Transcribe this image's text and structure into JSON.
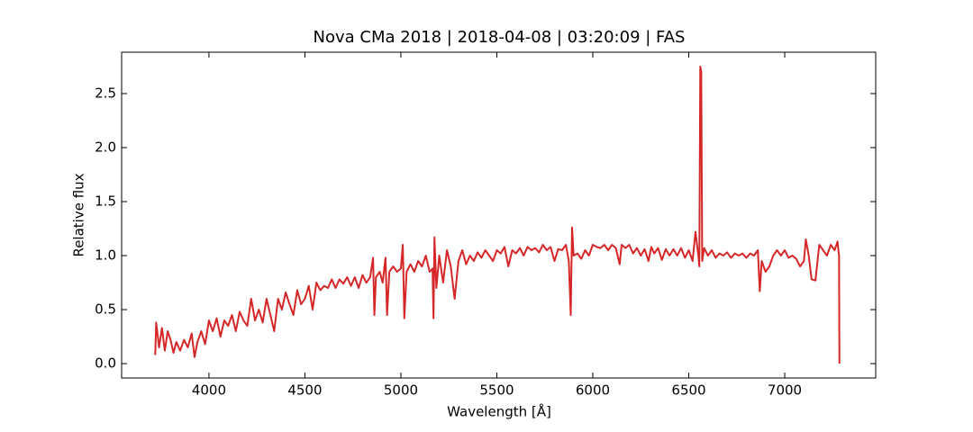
{
  "chart_data": {
    "type": "line",
    "title": "Nova CMa 2018 | 2018-04-08 | 03:20:09 | FAS",
    "x_label": "Wavelength [Å]",
    "y_label": "Relative flux",
    "color": "#d62728",
    "xlim": [
      3545,
      7474
    ],
    "ylim": [
      -0.133,
      2.883
    ],
    "xticks": [
      4000,
      4500,
      5000,
      5500,
      6000,
      6500,
      7000
    ],
    "yticks": [
      {
        "value": 0,
        "label": "0.0"
      },
      0.5,
      {
        "value": 1,
        "label": "1.0"
      },
      1.5,
      {
        "value": 2,
        "label": "2.0"
      },
      2.5
    ],
    "x": [
      3720,
      3725,
      3740,
      3755,
      3770,
      3785,
      3800,
      3815,
      3830,
      3850,
      3870,
      3890,
      3910,
      3925,
      3940,
      3960,
      3980,
      4000,
      4020,
      4040,
      4060,
      4080,
      4100,
      4120,
      4140,
      4160,
      4180,
      4200,
      4220,
      4240,
      4260,
      4280,
      4300,
      4320,
      4340,
      4360,
      4380,
      4400,
      4420,
      4440,
      4460,
      4480,
      4500,
      4520,
      4540,
      4560,
      4580,
      4600,
      4620,
      4640,
      4660,
      4680,
      4700,
      4720,
      4740,
      4760,
      4780,
      4800,
      4820,
      4840,
      4855,
      4862,
      4870,
      4890,
      4905,
      4920,
      4928,
      4940,
      4960,
      4980,
      5000,
      5010,
      5018,
      5030,
      5050,
      5070,
      5090,
      5110,
      5130,
      5150,
      5165,
      5170,
      5175,
      5185,
      5200,
      5220,
      5240,
      5260,
      5280,
      5300,
      5320,
      5340,
      5360,
      5380,
      5400,
      5420,
      5440,
      5460,
      5480,
      5500,
      5520,
      5540,
      5560,
      5580,
      5600,
      5620,
      5640,
      5660,
      5680,
      5700,
      5720,
      5740,
      5760,
      5780,
      5800,
      5820,
      5840,
      5860,
      5875,
      5885,
      5892,
      5900,
      5920,
      5940,
      5960,
      5980,
      6000,
      6020,
      6040,
      6060,
      6080,
      6100,
      6120,
      6140,
      6150,
      6170,
      6190,
      6210,
      6230,
      6250,
      6270,
      6290,
      6305,
      6320,
      6340,
      6360,
      6380,
      6400,
      6420,
      6440,
      6460,
      6480,
      6500,
      6520,
      6535,
      6550,
      6555,
      6560,
      6565,
      6570,
      6580,
      6600,
      6620,
      6640,
      6660,
      6680,
      6700,
      6720,
      6740,
      6760,
      6780,
      6800,
      6820,
      6840,
      6860,
      6870,
      6880,
      6900,
      6920,
      6940,
      6960,
      6980,
      7000,
      7020,
      7040,
      7060,
      7080,
      7100,
      7110,
      7125,
      7140,
      7160,
      7180,
      7200,
      7220,
      7240,
      7260,
      7275,
      7283,
      7285
    ],
    "values": [
      0.08,
      0.38,
      0.15,
      0.33,
      0.12,
      0.3,
      0.22,
      0.1,
      0.2,
      0.12,
      0.22,
      0.15,
      0.28,
      0.06,
      0.2,
      0.3,
      0.18,
      0.4,
      0.3,
      0.42,
      0.25,
      0.4,
      0.35,
      0.45,
      0.3,
      0.48,
      0.4,
      0.35,
      0.6,
      0.4,
      0.5,
      0.38,
      0.6,
      0.45,
      0.3,
      0.6,
      0.5,
      0.66,
      0.55,
      0.45,
      0.68,
      0.55,
      0.6,
      0.72,
      0.5,
      0.75,
      0.68,
      0.72,
      0.7,
      0.78,
      0.7,
      0.78,
      0.74,
      0.8,
      0.72,
      0.8,
      0.7,
      0.82,
      0.75,
      0.8,
      0.98,
      0.45,
      0.8,
      0.85,
      0.75,
      0.98,
      0.45,
      0.85,
      0.9,
      0.85,
      0.88,
      1.1,
      0.42,
      0.85,
      0.92,
      0.85,
      0.95,
      0.9,
      1.0,
      0.85,
      0.88,
      0.42,
      1.17,
      0.7,
      1.0,
      0.75,
      1.05,
      0.9,
      0.6,
      0.95,
      1.05,
      0.92,
      1.0,
      0.95,
      1.03,
      0.98,
      1.05,
      1.0,
      0.95,
      1.05,
      1.02,
      1.08,
      0.9,
      1.05,
      1.02,
      1.07,
      1.0,
      1.08,
      1.05,
      1.07,
      1.03,
      1.1,
      1.05,
      1.08,
      0.95,
      1.06,
      1.05,
      1.1,
      0.95,
      0.45,
      1.26,
      1.0,
      1.02,
      0.97,
      1.05,
      1.0,
      1.1,
      1.08,
      1.07,
      1.1,
      1.05,
      1.1,
      1.07,
      0.92,
      1.1,
      1.07,
      1.1,
      1.02,
      1.07,
      1.0,
      1.06,
      0.95,
      1.08,
      1.02,
      1.07,
      0.96,
      1.06,
      1.0,
      1.06,
      1.0,
      1.07,
      0.98,
      1.05,
      0.95,
      1.22,
      1.0,
      0.9,
      2.75,
      2.7,
      0.95,
      1.07,
      1.0,
      1.05,
      0.98,
      1.02,
      1.0,
      1.03,
      0.98,
      1.02,
      1.0,
      1.02,
      0.98,
      1.02,
      1.0,
      1.05,
      0.67,
      0.95,
      0.85,
      0.9,
      1.0,
      1.05,
      1.0,
      1.05,
      0.98,
      1.0,
      0.97,
      0.9,
      0.95,
      1.15,
      1.0,
      0.78,
      0.77,
      1.1,
      1.05,
      1.0,
      1.1,
      1.05,
      1.13,
      1.0,
      0.0
    ]
  }
}
